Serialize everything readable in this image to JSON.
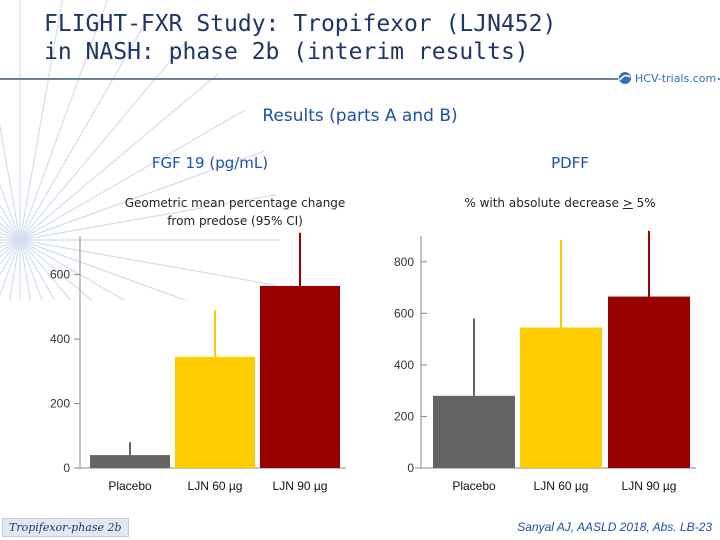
{
  "slide": {
    "title_line1": "FLIGHT-FXR Study: Tropifexor (LJN452)",
    "title_line2": "in NASH: phase 2b (interim results)",
    "subtitle": "Results (parts A and B)",
    "logo_text": "HCV-trials.com",
    "footer_tag": "Tropifexor-phase 2b",
    "citation": "Sanyal AJ, AASLD 2018, Abs. LB-23"
  },
  "colors": {
    "placebo": "#646464",
    "ljn60": "#ffcc00",
    "ljn90": "#990000",
    "axis": "#888888"
  },
  "chart_data": [
    {
      "type": "bar",
      "title": "FGF 19 (pg/mL)",
      "subtitle_line1": "Geometric mean percentage change",
      "subtitle_line2": "from predose (95% CI)",
      "categories": [
        "Placebo",
        "LJN 60 µg",
        "LJN 90 µg"
      ],
      "values": [
        40,
        345,
        565
      ],
      "error_upper": [
        80,
        490,
        730
      ],
      "ylim": [
        0,
        720
      ],
      "yticks": [
        0,
        200,
        400,
        600
      ],
      "ytick_labels": [
        "0",
        "200",
        "400",
        "600"
      ],
      "xlabel": "",
      "ylabel": ""
    },
    {
      "type": "bar",
      "title": "PDFF",
      "subtitle_prefix": "% with absolute decrease ",
      "subtitle_op": ">",
      "subtitle_suffix": " 5%",
      "categories": [
        "Placebo",
        "LJN 60 µg",
        "LJN 90 µg"
      ],
      "values": [
        280,
        545,
        665
      ],
      "error_upper": [
        580,
        885,
        920
      ],
      "ylim": [
        0,
        900
      ],
      "yticks": [
        0,
        200,
        400,
        600,
        800
      ],
      "ytick_labels": [
        "0",
        "200",
        "400",
        "600",
        "800"
      ],
      "xlabel": "",
      "ylabel": ""
    }
  ]
}
